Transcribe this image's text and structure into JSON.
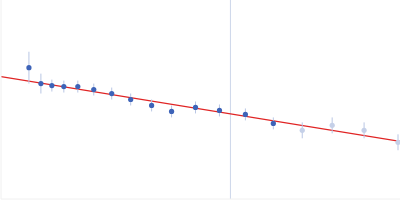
{
  "chart_data": {
    "type": "scatter",
    "xlim": [
      0,
      100
    ],
    "ylim": [
      0,
      50
    ],
    "tick_labels": false,
    "grid": false,
    "x": [
      7,
      10,
      12.75,
      15.75,
      19.25,
      23.25,
      27.75,
      32.5,
      37.75,
      42.75,
      48.75,
      54.75,
      61.25,
      68.25,
      75.5,
      83,
      91,
      99.5
    ],
    "values": [
      33,
      29,
      28.5,
      28.25,
      28.25,
      27.5,
      26.5,
      25,
      23.5,
      22,
      23,
      22.25,
      21.25,
      19,
      17.25,
      18.5,
      17.25,
      14.25
    ],
    "errors": [
      4,
      2.5,
      1.5,
      1.5,
      1.5,
      1.5,
      1.5,
      1.5,
      1.5,
      1.5,
      1.5,
      1.5,
      1.5,
      1.5,
      2,
      2,
      2,
      2
    ],
    "colors": [
      "#3d63b8",
      "#3d63b8",
      "#3d63b8",
      "#3d63b8",
      "#3d63b8",
      "#3d63b8",
      "#3d63b8",
      "#3d63b8",
      "#3d63b8",
      "#3d63b8",
      "#3d63b8",
      "#3d63b8",
      "#3d63b8",
      "#3d63b8",
      "#c5d0e8",
      "#c5d0e8",
      "#c5d0e8",
      "#c5d0e8"
    ],
    "fit": {
      "x": [
        0,
        100
      ],
      "values": [
        30.75,
        14.5
      ],
      "color": "#e02424"
    },
    "vline": {
      "x": 57.5,
      "color": "#cdd6ea"
    }
  }
}
